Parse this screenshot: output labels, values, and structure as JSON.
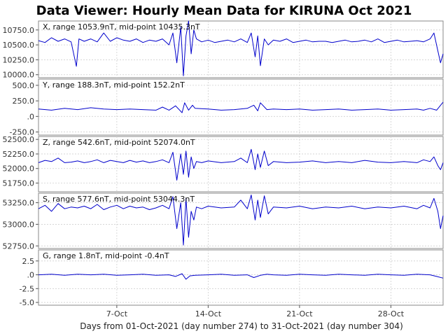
{
  "title": "Data Viewer:  Hourly Mean Data for KIRUNA Oct 2021",
  "xlabel": "Days from 01-Oct-2021 (day number 274) to 31-Oct-2021 (day number 304)",
  "colors": {
    "trace": "#0000cc",
    "grid": "#cfcfcf",
    "frame": "#888888"
  },
  "chart_data": {
    "type": "line",
    "x_unit": "day of October 2021",
    "x_range": [
      1,
      32
    ],
    "x_ticks": [
      {
        "day": 7,
        "label": "7-Oct"
      },
      {
        "day": 14,
        "label": "14-Oct"
      },
      {
        "day": 21,
        "label": "21-Oct"
      },
      {
        "day": 28,
        "label": "28-Oct"
      }
    ],
    "grid": true,
    "panels": [
      {
        "label": "X, range 1053.9nT, mid-point 10435.3nT",
        "ylim": [
          9950,
          10900
        ],
        "yticks": [
          {
            "v": 10000,
            "t": "10000.0"
          },
          {
            "v": 10250,
            "t": "10250.0"
          },
          {
            "v": 10500,
            "t": "10500.0"
          },
          {
            "v": 10750,
            "t": "10750.0"
          }
        ],
        "series": [
          {
            "x": [
              1,
              1.5,
              2,
              2.5,
              3,
              3.5,
              3.9,
              4.1,
              4.5,
              5,
              5.5,
              6,
              6.5,
              7,
              7.5,
              8,
              8.5,
              9,
              9.5,
              10,
              10.5,
              11,
              11.3,
              11.6,
              11.9,
              12.1,
              12.3,
              12.5,
              12.7,
              12.9,
              13.1,
              13.5,
              14,
              14.5,
              15,
              15.5,
              16,
              16.5,
              17,
              17.3,
              17.6,
              17.8,
              18,
              18.3,
              18.6,
              19,
              19.5,
              20,
              20.5,
              21,
              21.5,
              22,
              22.5,
              23,
              23.5,
              24,
              24.5,
              25,
              25.5,
              26,
              26.5,
              27,
              27.5,
              28,
              28.5,
              29,
              29.5,
              30,
              30.5,
              31,
              31.3,
              31.6,
              31.8,
              32
            ],
            "y": [
              10570,
              10540,
              10620,
              10560,
              10600,
              10550,
              10140,
              10600,
              10560,
              10600,
              10550,
              10700,
              10560,
              10620,
              10580,
              10560,
              10600,
              10540,
              10580,
              10560,
              10600,
              10500,
              10700,
              10200,
              10800,
              9980,
              10650,
              10900,
              10350,
              10750,
              10600,
              10550,
              10580,
              10540,
              10560,
              10580,
              10550,
              10600,
              10540,
              10700,
              10300,
              10650,
              10150,
              10600,
              10500,
              10580,
              10560,
              10600,
              10540,
              10560,
              10580,
              10550,
              10560,
              10560,
              10540,
              10560,
              10580,
              10550,
              10560,
              10580,
              10550,
              10600,
              10540,
              10560,
              10580,
              10550,
              10560,
              10570,
              10550,
              10600,
              10700,
              10400,
              10200,
              10350
            ]
          }
        ]
      },
      {
        "label": "Y, range 188.3nT, mid-point 152.2nT",
        "ylim": [
          -300,
          600
        ],
        "yticks": [
          {
            "v": -250,
            "t": "-250.0"
          },
          {
            "v": 0,
            "t": ".0"
          },
          {
            "v": 250,
            "t": "250.0"
          },
          {
            "v": 500,
            "t": "500.0"
          }
        ],
        "series": [
          {
            "x": [
              1,
              2,
              3,
              4,
              5,
              6,
              7,
              8,
              9,
              10,
              10.5,
              11,
              11.5,
              12,
              12.2,
              12.5,
              12.8,
              13,
              14,
              15,
              16,
              17,
              17.5,
              17.8,
              18,
              18.5,
              19,
              20,
              21,
              22,
              23,
              24,
              25,
              26,
              27,
              28,
              29,
              30,
              30.5,
              31,
              31.5,
              32
            ],
            "y": [
              120,
              100,
              130,
              110,
              140,
              120,
              110,
              120,
              110,
              100,
              150,
              100,
              170,
              60,
              220,
              100,
              180,
              130,
              120,
              100,
              110,
              130,
              180,
              90,
              220,
              110,
              120,
              110,
              120,
              100,
              110,
              120,
              100,
              110,
              120,
              100,
              110,
              120,
              100,
              130,
              100,
              230
            ]
          }
        ]
      },
      {
        "label": "Z, range 542.6nT, mid-point 52074.0nT",
        "ylim": [
          51600,
          52550
        ],
        "yticks": [
          {
            "v": 51750,
            "t": "51750.0"
          },
          {
            "v": 52000,
            "t": "52000.0"
          },
          {
            "v": 52250,
            "t": "52250.0"
          },
          {
            "v": 52500,
            "t": "52500.0"
          }
        ],
        "series": [
          {
            "x": [
              1,
              1.5,
              2,
              2.5,
              3,
              3.5,
              4,
              4.5,
              5,
              5.5,
              6,
              6.5,
              7,
              7.5,
              8,
              8.5,
              9,
              9.5,
              10,
              10.5,
              11,
              11.3,
              11.6,
              11.9,
              12.1,
              12.3,
              12.5,
              12.7,
              12.9,
              13.1,
              13.5,
              14,
              15,
              16,
              16.5,
              17,
              17.3,
              17.6,
              17.8,
              18,
              18.3,
              18.6,
              19,
              20,
              21,
              22,
              23,
              24,
              25,
              26,
              27,
              28,
              29,
              30,
              30.5,
              31,
              31.3,
              31.6,
              31.8,
              32
            ],
            "y": [
              52100,
              52140,
              52120,
              52180,
              52100,
              52110,
              52130,
              52100,
              52120,
              52150,
              52100,
              52140,
              52120,
              52100,
              52140,
              52110,
              52130,
              52100,
              52120,
              52150,
              52100,
              52280,
              51800,
              52250,
              51900,
              52300,
              51850,
              52200,
              52000,
              52120,
              52100,
              52130,
              52100,
              52120,
              52180,
              52100,
              52330,
              51980,
              52250,
              52020,
              52300,
              52050,
              52120,
              52100,
              52110,
              52130,
              52100,
              52120,
              52100,
              52140,
              52110,
              52100,
              52120,
              52100,
              52150,
              52120,
              52200,
              52050,
              51980,
              52100
            ]
          }
        ]
      },
      {
        "label": "S, range 577.6nT, mid-point 53044.3nT",
        "ylim": [
          52720,
          53360
        ],
        "yticks": [
          {
            "v": 52750,
            "t": "52750.0"
          },
          {
            "v": 53000,
            "t": "53000.0"
          },
          {
            "v": 53250,
            "t": "53250.0"
          }
        ],
        "series": [
          {
            "x": [
              1,
              1.5,
              2,
              2.5,
              3,
              3.5,
              4,
              4.5,
              5,
              5.5,
              6,
              6.5,
              7,
              7.5,
              8,
              8.5,
              9,
              9.5,
              10,
              10.5,
              11,
              11.3,
              11.6,
              11.9,
              12.1,
              12.3,
              12.5,
              12.7,
              12.9,
              13.1,
              13.5,
              14,
              15,
              16,
              16.5,
              17,
              17.3,
              17.6,
              17.8,
              18,
              18.3,
              18.6,
              19,
              20,
              21,
              22,
              23,
              24,
              25,
              26,
              27,
              28,
              29,
              30,
              30.5,
              31,
              31.3,
              31.6,
              31.8,
              32
            ],
            "y": [
              53180,
              53220,
              53150,
              53240,
              53180,
              53200,
              53190,
              53210,
              53180,
              53230,
              53170,
              53200,
              53220,
              53180,
              53210,
              53190,
              53200,
              53170,
              53190,
              53220,
              53180,
              53320,
              52950,
              53250,
              52760,
              53300,
              52850,
              53150,
              53050,
              53200,
              53180,
              53210,
              53190,
              53200,
              53280,
              53180,
              53340,
              53050,
              53280,
              53080,
              53330,
              53120,
              53200,
              53190,
              53210,
              53180,
              53200,
              53190,
              53210,
              53180,
              53200,
              53190,
              53210,
              53180,
              53220,
              53190,
              53300,
              53150,
              52950,
              53100
            ]
          }
        ]
      },
      {
        "label": "G, range 1.8nT, mid-point -0.4nT",
        "ylim": [
          -5.5,
          4.5
        ],
        "yticks": [
          {
            "v": -5,
            "t": "-5.0"
          },
          {
            "v": -2.5,
            "t": "-2.5"
          },
          {
            "v": 0,
            "t": ".0"
          },
          {
            "v": 2.5,
            "t": "2.5"
          }
        ],
        "series": [
          {
            "x": [
              1,
              2,
              3,
              4,
              5,
              6,
              7,
              8,
              9,
              10,
              11,
              11.5,
              12,
              12.3,
              12.6,
              13,
              14,
              15,
              16,
              17,
              17.5,
              18,
              18.5,
              19,
              20,
              21,
              22,
              23,
              24,
              25,
              26,
              27,
              28,
              29,
              30,
              31,
              31.5,
              32
            ],
            "y": [
              0,
              0.1,
              -0.1,
              0.1,
              0,
              0.1,
              -0.1,
              0,
              0.1,
              -0.1,
              0,
              -0.3,
              0.2,
              -0.8,
              -0.2,
              -0.1,
              0,
              0.1,
              -0.1,
              0,
              -0.5,
              -0.1,
              0.1,
              0,
              -0.1,
              0.1,
              0,
              -0.1,
              0.1,
              0,
              -0.1,
              0.1,
              0,
              -0.1,
              0.1,
              0,
              -0.3,
              -0.6
            ]
          }
        ]
      }
    ]
  }
}
